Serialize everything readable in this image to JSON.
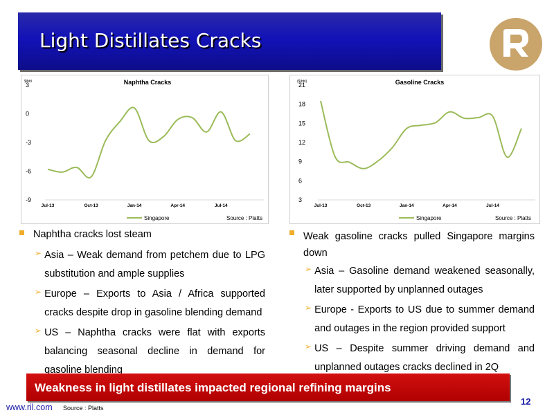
{
  "slide": {
    "title": "Light Distillates Cracks",
    "banner": "Weakness in light distillates impacted regional refining margins",
    "url": "www.ril.com",
    "footer_source": "Source : Platts",
    "page_number": "12"
  },
  "colors": {
    "title_bg": "#1212b8",
    "banner_bg": "#c00000",
    "bullet": "#f0ad2a",
    "line": "#9bbb59",
    "logo": "#c9a46b"
  },
  "left": {
    "main": "Naphtha cracks lost steam",
    "subs": [
      "Asia – Weak demand from petchem due to LPG substitution and ample supplies",
      "Europe – Exports to Asia / Africa supported cracks despite drop in gasoline blending demand",
      "US – Naphtha cracks were flat with exports balancing seasonal decline in demand for gasoline blending"
    ]
  },
  "right": {
    "main": "Weak gasoline cracks pulled Singapore margins down",
    "subs": [
      "Asia – Gasoline demand weakened seasonally, later supported by unplanned outages",
      "Europe - Exports to US due to summer demand and outages in the region provided support",
      "US – Despite summer driving demand and unplanned outages cracks declined in 2Q"
    ]
  },
  "chart_data": [
    {
      "type": "line",
      "title": "Naphtha Cracks",
      "unit_label": "$/bbl",
      "ylim": [
        -9,
        3
      ],
      "yticks": [
        "3",
        "0",
        "-3",
        "-6",
        "-9"
      ],
      "xticks": [
        "Jul-13",
        "Oct-13",
        "Jan-14",
        "Apr-14",
        "Jul-14"
      ],
      "x": [
        "Jul-13",
        "Aug-13",
        "Sep-13",
        "Oct-13",
        "Nov-13",
        "Dec-13",
        "Jan-14",
        "Feb-14",
        "Mar-14",
        "Apr-14",
        "May-14",
        "Jun-14",
        "Jul-14",
        "Aug-14",
        "Sep-14"
      ],
      "series": [
        {
          "name": "Singapore",
          "values": [
            -5.8,
            -6.1,
            -5.6,
            -6.6,
            -2.8,
            -0.8,
            0.6,
            -2.8,
            -2.4,
            -0.6,
            -0.4,
            -1.9,
            0.2,
            -2.8,
            -2.1
          ]
        }
      ],
      "source": "Source : Platts",
      "legend": "bottom"
    },
    {
      "type": "line",
      "title": "Gasoline Cracks",
      "unit_label": "($/bbl)",
      "ylim": [
        3,
        21
      ],
      "yticks": [
        "21",
        "18",
        "15",
        "12",
        "9",
        "6",
        "3"
      ],
      "xticks": [
        "Jul-13",
        "Oct-13",
        "Jan-14",
        "Apr-14",
        "Jul-14"
      ],
      "x": [
        "Jul-13",
        "Aug-13",
        "Sep-13",
        "Oct-13",
        "Nov-13",
        "Dec-13",
        "Jan-14",
        "Feb-14",
        "Mar-14",
        "Apr-14",
        "May-14",
        "Jun-14",
        "Jul-14",
        "Aug-14",
        "Sep-14"
      ],
      "series": [
        {
          "name": "Singapore",
          "values": [
            18.5,
            9.8,
            8.9,
            7.9,
            9.1,
            11.2,
            14.2,
            14.7,
            15.1,
            16.8,
            15.8,
            15.9,
            16.1,
            9.7,
            14.2
          ]
        }
      ],
      "source": "Source : Platts",
      "legend": "bottom"
    }
  ]
}
